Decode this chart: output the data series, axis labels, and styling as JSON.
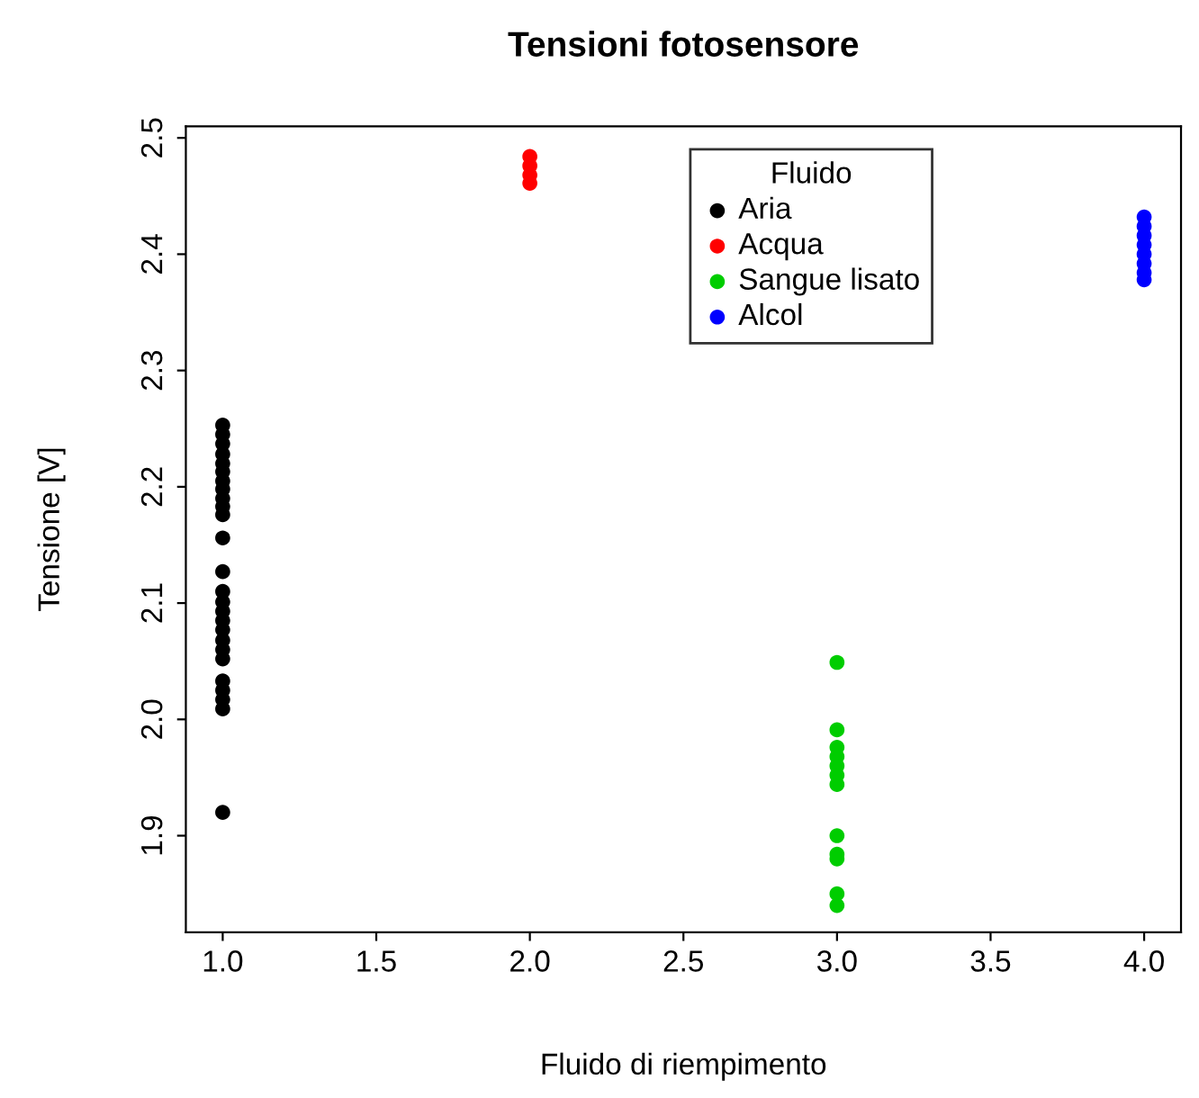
{
  "chart_data": {
    "type": "scatter",
    "title": "Tensioni fotosensore",
    "xlabel": "Fluido di riempimento",
    "ylabel": "Tensione [V]",
    "legend_title": "Fluido",
    "xlim": [
      0.88,
      4.12
    ],
    "ylim": [
      1.817,
      2.51
    ],
    "xticks": [
      {
        "value": 1.0,
        "label": "1.0"
      },
      {
        "value": 1.5,
        "label": "1.5"
      },
      {
        "value": 2.0,
        "label": "2.0"
      },
      {
        "value": 2.5,
        "label": "2.5"
      },
      {
        "value": 3.0,
        "label": "3.0"
      },
      {
        "value": 3.5,
        "label": "3.5"
      },
      {
        "value": 4.0,
        "label": "4.0"
      }
    ],
    "yticks": [
      1.9,
      {
        "value": 2.0,
        "label": "2.0"
      },
      2.1,
      2.2,
      2.3,
      2.4,
      2.5
    ],
    "grid": false,
    "legend": "top right",
    "marker": "circle",
    "series": [
      {
        "name": "Aria",
        "color": "#000000",
        "x": [
          1,
          1,
          1,
          1,
          1,
          1,
          1,
          1,
          1,
          1,
          1,
          1,
          1,
          1,
          1,
          1,
          1,
          1,
          1,
          1,
          1,
          1,
          1,
          1,
          1,
          1
        ],
        "values": [
          2.253,
          2.245,
          2.237,
          2.228,
          2.22,
          2.213,
          2.205,
          2.198,
          2.19,
          2.183,
          2.176,
          2.156,
          2.127,
          2.11,
          2.101,
          2.093,
          2.085,
          2.077,
          2.068,
          2.06,
          2.052,
          2.033,
          2.025,
          2.017,
          2.009,
          1.92
        ]
      },
      {
        "name": "Acqua",
        "color": "#ff0000",
        "x": [
          2,
          2,
          2,
          2
        ],
        "values": [
          2.484,
          2.476,
          2.468,
          2.461
        ]
      },
      {
        "name": "Sangue lisato",
        "color": "#00cd00",
        "x": [
          3,
          3,
          3,
          3,
          3,
          3,
          3,
          3,
          3,
          3,
          3,
          3
        ],
        "values": [
          2.049,
          1.991,
          1.976,
          1.968,
          1.96,
          1.952,
          1.944,
          1.9,
          1.884,
          1.88,
          1.85,
          1.84
        ]
      },
      {
        "name": "Alcol",
        "color": "#0000ff",
        "x": [
          4,
          4,
          4,
          4,
          4,
          4,
          4,
          4
        ],
        "values": [
          2.432,
          2.424,
          2.416,
          2.408,
          2.4,
          2.392,
          2.384,
          2.378
        ]
      }
    ]
  }
}
